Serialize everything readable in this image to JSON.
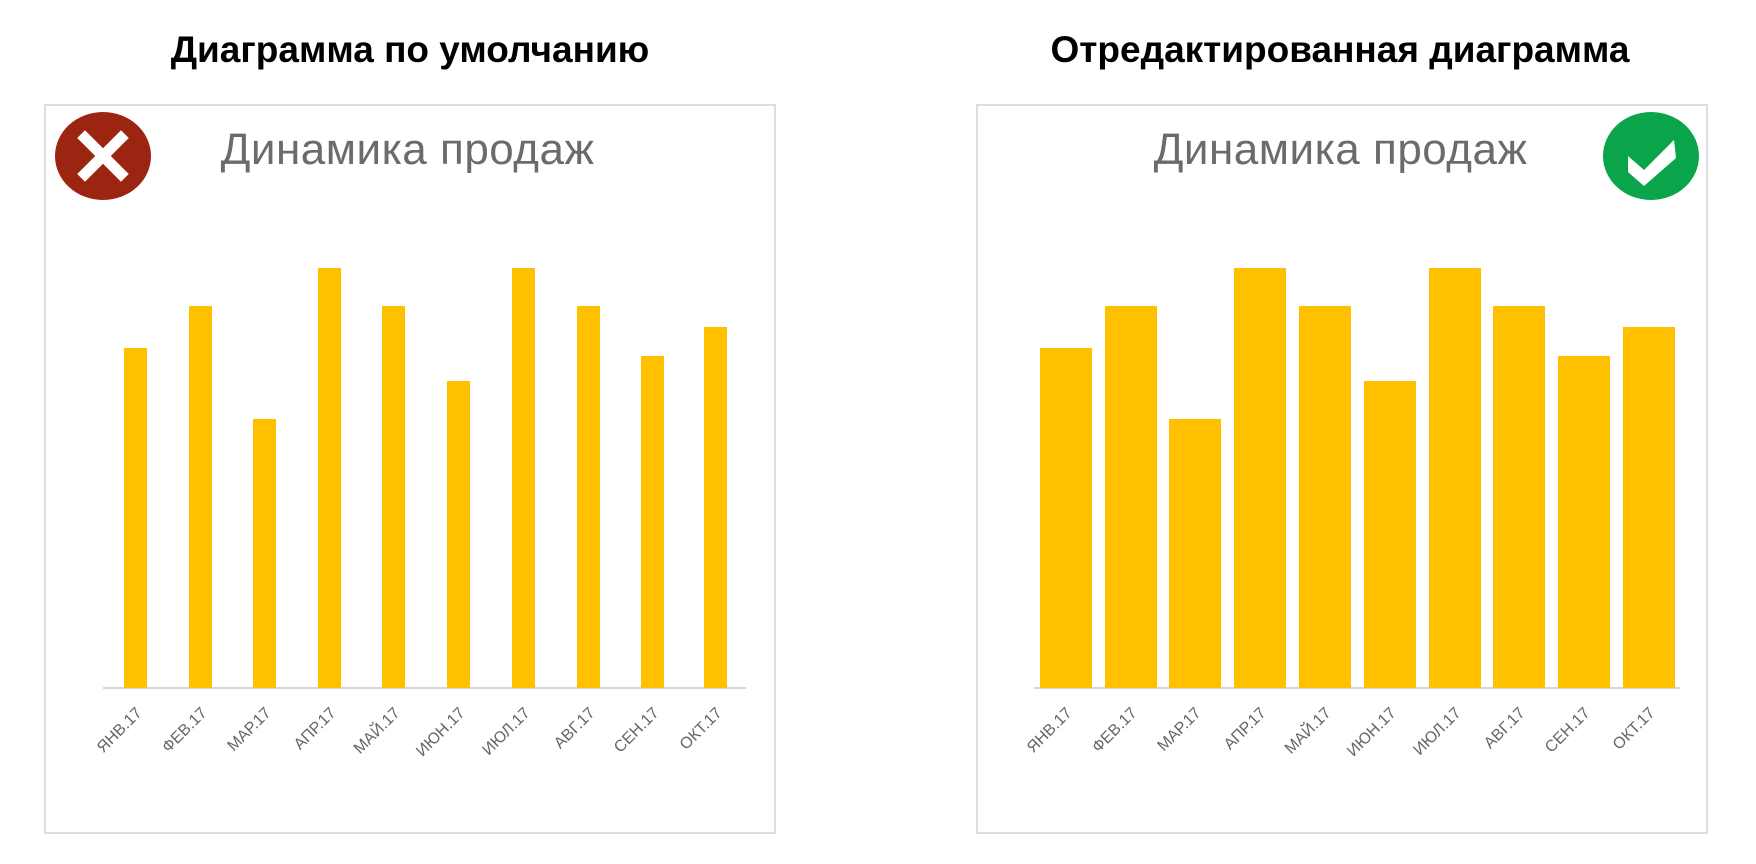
{
  "panels": [
    {
      "heading": "Диаграмма по умолчанию",
      "status_icon": "cross-icon",
      "status_color": "#9B2510",
      "status": "bad"
    },
    {
      "heading": "Отредактированная диаграмма",
      "status_icon": "checkmark-icon",
      "status_color": "#0AA54B",
      "status": "good"
    }
  ],
  "colors": {
    "bar": "#FFC000",
    "axis": "#D6D6D6",
    "frame_border": "#DCDCDC",
    "chart_title": "#6B6B6B",
    "tick_label": "#666666"
  },
  "chart_data": [
    {
      "type": "bar",
      "title": "Динамика продаж",
      "variant": "default (narrow bars, wide gaps)",
      "categories": [
        "ЯНВ.17",
        "ФЕВ.17",
        "МАР.17",
        "АПР.17",
        "МАЙ.17",
        "ИЮН.17",
        "ИЮЛ.17",
        "АВГ.17",
        "СЕН.17",
        "ОКТ.17"
      ],
      "values": [
        81,
        91,
        64,
        100,
        91,
        73,
        100,
        91,
        79,
        86
      ],
      "xlabel": "",
      "ylabel": "",
      "ylim": [
        0,
        100
      ],
      "y_axis_visible": false,
      "grid": false,
      "legend": "none",
      "tick_label_rotation": -45
    },
    {
      "type": "bar",
      "title": "Динамика продаж",
      "variant": "edited (wide bars, narrow gaps)",
      "categories": [
        "ЯНВ.17",
        "ФЕВ.17",
        "МАР.17",
        "АПР.17",
        "МАЙ.17",
        "ИЮН.17",
        "ИЮЛ.17",
        "АВГ.17",
        "СЕН.17",
        "ОКТ.17"
      ],
      "values": [
        81,
        91,
        64,
        100,
        91,
        73,
        100,
        91,
        79,
        86
      ],
      "xlabel": "",
      "ylabel": "",
      "ylim": [
        0,
        100
      ],
      "y_axis_visible": false,
      "grid": false,
      "legend": "none",
      "tick_label_rotation": -45
    }
  ]
}
